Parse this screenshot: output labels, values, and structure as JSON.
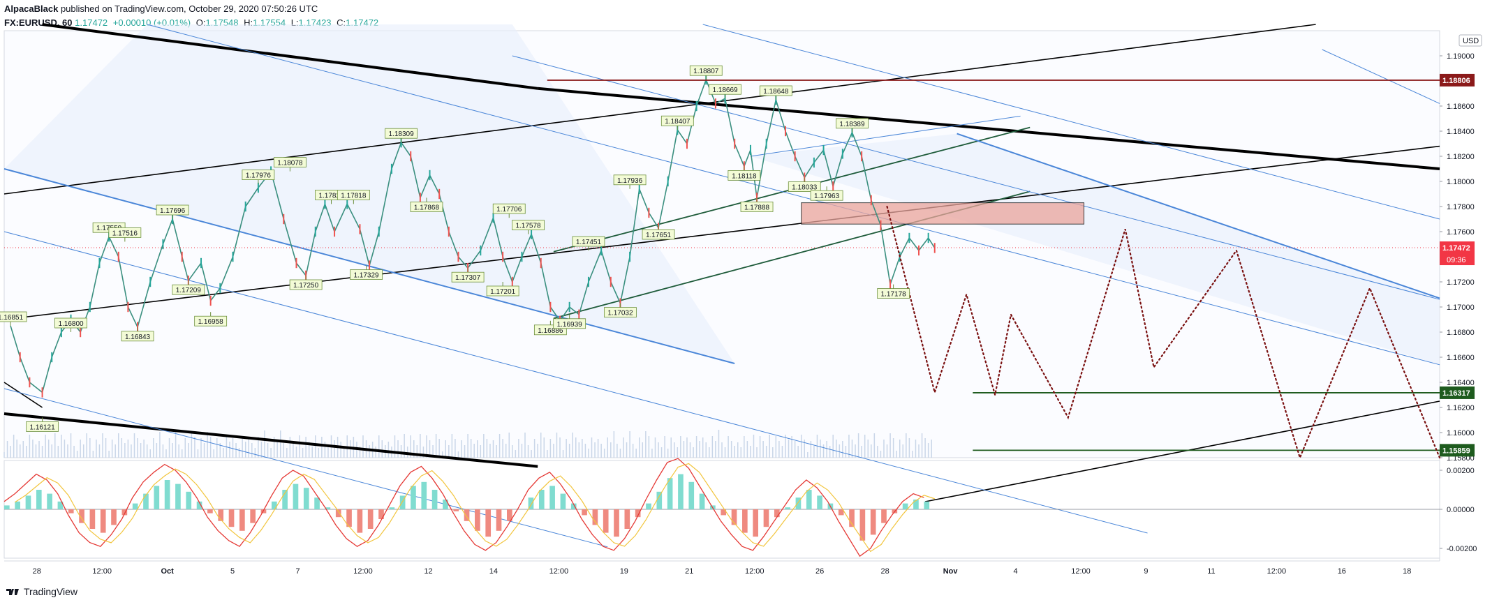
{
  "header": {
    "publisher": "AlpacaBlack",
    "published_text": "published on TradingView.com, October 29, 2020 07:50:26 UTC",
    "symbol": "FX:EURUSD, 60",
    "last": "1.17472",
    "change": "+0.00010 (+0.01%)",
    "o_label": "O:",
    "o_value": "1.17548",
    "h_label": "H:",
    "h_value": "1.17554",
    "l_label": "L:",
    "l_value": "1.17423",
    "c_label": "C:",
    "c_value": "1.17472"
  },
  "footer": {
    "brand": "TradingView"
  },
  "colors": {
    "up": "#26a69a",
    "down": "#ef5350",
    "channel": "#4a86d8",
    "resistance": "#8b1a1a",
    "support": "#1e5b1e",
    "zone": "#eaa59c",
    "projection": "#7a1010",
    "price_tag": "#f23645"
  },
  "chart_data": {
    "type": "line",
    "title": "",
    "currency_label": "USD",
    "ylim": [
      1.158,
      1.192
    ],
    "y_ticks": [
      "1.19000",
      "1.18800",
      "1.18600",
      "1.18400",
      "1.18200",
      "1.18000",
      "1.17800",
      "1.17600",
      "1.17400",
      "1.17200",
      "1.17000",
      "1.16800",
      "1.16600",
      "1.16400",
      "1.16200",
      "1.16000",
      "1.15800"
    ],
    "x_ticks": [
      "28",
      "12:00",
      "Oct",
      "5",
      "7",
      "12:00",
      "12",
      "14",
      "12:00",
      "19",
      "21",
      "12:00",
      "26",
      "28",
      "Nov",
      "4",
      "12:00",
      "9",
      "11",
      "12:00",
      "16",
      "18"
    ],
    "price_path": [
      {
        "x": 2,
        "y": 1.1685
      },
      {
        "x": 5,
        "y": 1.166
      },
      {
        "x": 8,
        "y": 1.164
      },
      {
        "x": 12,
        "y": 1.1632
      },
      {
        "x": 15,
        "y": 1.166
      },
      {
        "x": 18,
        "y": 1.168
      },
      {
        "x": 21,
        "y": 1.169
      },
      {
        "x": 24,
        "y": 1.168
      },
      {
        "x": 27,
        "y": 1.17
      },
      {
        "x": 30,
        "y": 1.1735
      },
      {
        "x": 33,
        "y": 1.1756
      },
      {
        "x": 36,
        "y": 1.174
      },
      {
        "x": 39,
        "y": 1.17
      },
      {
        "x": 42,
        "y": 1.1684
      },
      {
        "x": 46,
        "y": 1.172
      },
      {
        "x": 50,
        "y": 1.175
      },
      {
        "x": 53,
        "y": 1.177
      },
      {
        "x": 56,
        "y": 1.174
      },
      {
        "x": 58,
        "y": 1.1721
      },
      {
        "x": 62,
        "y": 1.1735
      },
      {
        "x": 65,
        "y": 1.1705
      },
      {
        "x": 68,
        "y": 1.1715
      },
      {
        "x": 72,
        "y": 1.174
      },
      {
        "x": 76,
        "y": 1.178
      },
      {
        "x": 80,
        "y": 1.1795
      },
      {
        "x": 84,
        "y": 1.1808
      },
      {
        "x": 88,
        "y": 1.177
      },
      {
        "x": 92,
        "y": 1.1735
      },
      {
        "x": 95,
        "y": 1.1725
      },
      {
        "x": 98,
        "y": 1.176
      },
      {
        "x": 101,
        "y": 1.1782
      },
      {
        "x": 104,
        "y": 1.176
      },
      {
        "x": 108,
        "y": 1.1782
      },
      {
        "x": 112,
        "y": 1.1762
      },
      {
        "x": 115,
        "y": 1.1733
      },
      {
        "x": 118,
        "y": 1.176
      },
      {
        "x": 122,
        "y": 1.181
      },
      {
        "x": 125,
        "y": 1.1831
      },
      {
        "x": 128,
        "y": 1.182
      },
      {
        "x": 131,
        "y": 1.1787
      },
      {
        "x": 134,
        "y": 1.1805
      },
      {
        "x": 137,
        "y": 1.179
      },
      {
        "x": 140,
        "y": 1.176
      },
      {
        "x": 143,
        "y": 1.174
      },
      {
        "x": 146,
        "y": 1.1731
      },
      {
        "x": 150,
        "y": 1.1745
      },
      {
        "x": 154,
        "y": 1.1771
      },
      {
        "x": 157,
        "y": 1.174
      },
      {
        "x": 160,
        "y": 1.172
      },
      {
        "x": 163,
        "y": 1.174
      },
      {
        "x": 166,
        "y": 1.1758
      },
      {
        "x": 169,
        "y": 1.1735
      },
      {
        "x": 172,
        "y": 1.17
      },
      {
        "x": 175,
        "y": 1.1689
      },
      {
        "x": 178,
        "y": 1.17
      },
      {
        "x": 181,
        "y": 1.1694
      },
      {
        "x": 184,
        "y": 1.172
      },
      {
        "x": 188,
        "y": 1.1745
      },
      {
        "x": 191,
        "y": 1.172
      },
      {
        "x": 194,
        "y": 1.1703
      },
      {
        "x": 197,
        "y": 1.174
      },
      {
        "x": 200,
        "y": 1.1794
      },
      {
        "x": 203,
        "y": 1.1775
      },
      {
        "x": 206,
        "y": 1.1763
      },
      {
        "x": 209,
        "y": 1.18
      },
      {
        "x": 212,
        "y": 1.1841
      },
      {
        "x": 215,
        "y": 1.183
      },
      {
        "x": 218,
        "y": 1.186
      },
      {
        "x": 221,
        "y": 1.1881
      },
      {
        "x": 224,
        "y": 1.1862
      },
      {
        "x": 227,
        "y": 1.1866
      },
      {
        "x": 230,
        "y": 1.183
      },
      {
        "x": 233,
        "y": 1.1812
      },
      {
        "x": 235,
        "y": 1.1825
      },
      {
        "x": 237,
        "y": 1.1787
      },
      {
        "x": 240,
        "y": 1.183
      },
      {
        "x": 243,
        "y": 1.1865
      },
      {
        "x": 246,
        "y": 1.184
      },
      {
        "x": 249,
        "y": 1.182
      },
      {
        "x": 252,
        "y": 1.1803
      },
      {
        "x": 255,
        "y": 1.1815
      },
      {
        "x": 258,
        "y": 1.1825
      },
      {
        "x": 261,
        "y": 1.1796
      },
      {
        "x": 264,
        "y": 1.1822
      },
      {
        "x": 267,
        "y": 1.1839
      },
      {
        "x": 270,
        "y": 1.182
      },
      {
        "x": 273,
        "y": 1.1785
      },
      {
        "x": 276,
        "y": 1.1765
      },
      {
        "x": 279,
        "y": 1.1718
      },
      {
        "x": 282,
        "y": 1.174
      },
      {
        "x": 285,
        "y": 1.1755
      },
      {
        "x": 288,
        "y": 1.1745
      },
      {
        "x": 291,
        "y": 1.1755
      },
      {
        "x": 293,
        "y": 1.1747
      }
    ],
    "price_labels": [
      {
        "x": 2,
        "y": 1.1685,
        "label": "1.16851",
        "pos": "above"
      },
      {
        "x": 12,
        "y": 1.1612,
        "label": "1.16121",
        "pos": "below"
      },
      {
        "x": 21,
        "y": 1.168,
        "label": "1.16800",
        "pos": "above"
      },
      {
        "x": 33,
        "y": 1.1756,
        "label": "1.17559",
        "pos": "above"
      },
      {
        "x": 38,
        "y": 1.1752,
        "label": "1.17516",
        "pos": "above"
      },
      {
        "x": 42,
        "y": 1.1684,
        "label": "1.16843",
        "pos": "below"
      },
      {
        "x": 53,
        "y": 1.177,
        "label": "1.17696",
        "pos": "above"
      },
      {
        "x": 58,
        "y": 1.1721,
        "label": "1.17209",
        "pos": "below"
      },
      {
        "x": 65,
        "y": 1.1696,
        "label": "1.16958",
        "pos": "below"
      },
      {
        "x": 80,
        "y": 1.1798,
        "label": "1.17976",
        "pos": "above"
      },
      {
        "x": 90,
        "y": 1.1808,
        "label": "1.18078",
        "pos": "above"
      },
      {
        "x": 95,
        "y": 1.1725,
        "label": "1.17250",
        "pos": "below"
      },
      {
        "x": 103,
        "y": 1.1782,
        "label": "1.17820",
        "pos": "above"
      },
      {
        "x": 110,
        "y": 1.1782,
        "label": "1.17818",
        "pos": "above"
      },
      {
        "x": 114,
        "y": 1.1733,
        "label": "1.17329",
        "pos": "below"
      },
      {
        "x": 125,
        "y": 1.1831,
        "label": "1.18309",
        "pos": "above"
      },
      {
        "x": 133,
        "y": 1.1787,
        "label": "1.17868",
        "pos": "below"
      },
      {
        "x": 146,
        "y": 1.1731,
        "label": "1.17307",
        "pos": "below"
      },
      {
        "x": 159,
        "y": 1.1771,
        "label": "1.17706",
        "pos": "above"
      },
      {
        "x": 157,
        "y": 1.172,
        "label": "1.17201",
        "pos": "below"
      },
      {
        "x": 165,
        "y": 1.1758,
        "label": "1.17578",
        "pos": "above"
      },
      {
        "x": 172,
        "y": 1.1689,
        "label": "1.16886",
        "pos": "below"
      },
      {
        "x": 178,
        "y": 1.1694,
        "label": "1.16939",
        "pos": "below"
      },
      {
        "x": 184,
        "y": 1.1745,
        "label": "1.17451",
        "pos": "above"
      },
      {
        "x": 194,
        "y": 1.1703,
        "label": "1.17032",
        "pos": "below"
      },
      {
        "x": 197,
        "y": 1.1794,
        "label": "1.17936",
        "pos": "above"
      },
      {
        "x": 206,
        "y": 1.1765,
        "label": "1.17651",
        "pos": "below"
      },
      {
        "x": 212,
        "y": 1.1841,
        "label": "1.18407",
        "pos": "above"
      },
      {
        "x": 221,
        "y": 1.1881,
        "label": "1.18807",
        "pos": "above"
      },
      {
        "x": 227,
        "y": 1.1866,
        "label": "1.18669",
        "pos": "above"
      },
      {
        "x": 233,
        "y": 1.1812,
        "label": "1.18118",
        "pos": "below"
      },
      {
        "x": 237,
        "y": 1.1787,
        "label": "1.17888",
        "pos": "below"
      },
      {
        "x": 243,
        "y": 1.1865,
        "label": "1.18648",
        "pos": "above"
      },
      {
        "x": 252,
        "y": 1.1803,
        "label": "1.18033",
        "pos": "below"
      },
      {
        "x": 259,
        "y": 1.1796,
        "label": "1.17963",
        "pos": "below"
      },
      {
        "x": 267,
        "y": 1.1839,
        "label": "1.18389",
        "pos": "above"
      },
      {
        "x": 280,
        "y": 1.1718,
        "label": "1.17178",
        "pos": "below"
      }
    ],
    "horizontal_levels": [
      {
        "value": 1.18806,
        "label": "1.18806",
        "color": "#8b1a1a",
        "x_start": 171
      },
      {
        "value": 1.16317,
        "label": "1.16317",
        "color": "#1e5b1e",
        "x_start": 305
      },
      {
        "value": 1.15859,
        "label": "1.15859",
        "color": "#1e5b1e",
        "x_start": 305
      }
    ],
    "current_price": {
      "value": 1.17472,
      "label": "1.17472",
      "countdown": "09:36"
    },
    "zone": {
      "x0": 251,
      "x1": 340,
      "y0": 1.1783,
      "y1": 1.1766
    },
    "trendlines": [
      {
        "x0": 12,
        "y0": 1.1925,
        "x1": 168,
        "y1": 1.1874,
        "kind": "thick"
      },
      {
        "x0": 168,
        "y0": 1.1874,
        "x1": 452,
        "y1": 1.181,
        "kind": "thick"
      },
      {
        "x0": 0,
        "y0": 1.1615,
        "x1": 168,
        "y1": 1.1573,
        "kind": "thick"
      },
      {
        "x0": 0,
        "y0": 1.179,
        "x1": 413,
        "y1": 1.1925,
        "kind": "medium"
      },
      {
        "x0": 0,
        "y0": 1.169,
        "x1": 452,
        "y1": 1.1828,
        "kind": "medium"
      },
      {
        "x0": 290,
        "y0": 1.1545,
        "x1": 452,
        "y1": 1.1625,
        "kind": "medium"
      },
      {
        "x0": 0,
        "y0": 1.164,
        "x1": 12,
        "y1": 1.162,
        "kind": "medium"
      },
      {
        "x0": 173,
        "y0": 1.1691,
        "x1": 323,
        "y1": 1.1792,
        "kind": "green"
      },
      {
        "x0": 173,
        "y0": 1.1744,
        "x1": 323,
        "y1": 1.1843,
        "kind": "green"
      },
      {
        "x0": 0,
        "y0": 1.181,
        "x1": 230,
        "y1": 1.1655,
        "kind": "blue"
      },
      {
        "x0": 45,
        "y0": 1.1925,
        "x1": 452,
        "y1": 1.1654,
        "kind": "blue_thin"
      },
      {
        "x0": 160,
        "y0": 1.19,
        "x1": 452,
        "y1": 1.1706,
        "kind": "blue_thin"
      },
      {
        "x0": 220,
        "y0": 1.1925,
        "x1": 452,
        "y1": 1.177,
        "kind": "blue_thin"
      },
      {
        "x0": 0,
        "y0": 1.176,
        "x1": 360,
        "y1": 1.152,
        "kind": "blue_thin"
      },
      {
        "x0": 0,
        "y0": 1.1635,
        "x1": 190,
        "y1": 1.1509,
        "kind": "blue_thin"
      },
      {
        "x0": 300,
        "y0": 1.1838,
        "x1": 452,
        "y1": 1.1707,
        "kind": "blue"
      },
      {
        "x0": 235,
        "y0": 1.182,
        "x1": 320,
        "y1": 1.1852,
        "kind": "blue_thin"
      },
      {
        "x0": 415,
        "y0": 1.1905,
        "x1": 452,
        "y1": 1.1862,
        "kind": "blue_thin"
      }
    ],
    "projection": [
      {
        "x": 278,
        "y": 1.178
      },
      {
        "x": 293,
        "y": 1.1632
      },
      {
        "x": 303,
        "y": 1.171
      },
      {
        "x": 312,
        "y": 1.163
      },
      {
        "x": 317,
        "y": 1.1694
      },
      {
        "x": 335,
        "y": 1.1612
      },
      {
        "x": 353,
        "y": 1.1762
      },
      {
        "x": 362,
        "y": 1.1652
      },
      {
        "x": 388,
        "y": 1.1745
      },
      {
        "x": 408,
        "y": 1.158
      },
      {
        "x": 430,
        "y": 1.1715
      },
      {
        "x": 452,
        "y": 1.158
      }
    ],
    "oscillator": {
      "ylim": [
        -0.0025,
        0.0025
      ],
      "y_ticks": [
        "0.00200",
        "0.00000",
        "-0.00200"
      ],
      "histogram": [
        0.0002,
        0.0004,
        0.0007,
        0.001,
        0.0008,
        0.0004,
        -0.0002,
        -0.0007,
        -0.001,
        -0.0012,
        -0.0008,
        -0.0003,
        0.0003,
        0.0008,
        0.0012,
        0.0015,
        0.0013,
        0.0009,
        0.0004,
        -0.0002,
        -0.0006,
        -0.0009,
        -0.0011,
        -0.0007,
        -0.0002,
        0.0004,
        0.001,
        0.0013,
        0.0011,
        0.0006,
        0.0001,
        -0.0004,
        -0.0009,
        -0.0012,
        -0.001,
        -0.0005,
        0.0001,
        0.0007,
        0.0012,
        0.0014,
        0.001,
        0.0005,
        -0.0001,
        -0.0006,
        -0.0011,
        -0.0014,
        -0.0011,
        -0.0006,
        0.0,
        0.0006,
        0.001,
        0.0012,
        0.0008,
        0.0003,
        -0.0003,
        -0.0008,
        -0.0012,
        -0.0014,
        -0.001,
        -0.0004,
        0.0003,
        0.0009,
        0.0016,
        0.0018,
        0.0014,
        0.0008,
        0.0002,
        -0.0003,
        -0.0008,
        -0.0012,
        -0.0014,
        -0.0009,
        -0.0004,
        0.0001,
        0.0006,
        0.001,
        0.0007,
        0.0003,
        -0.0003,
        -0.0009,
        -0.0016,
        -0.0013,
        -0.0007,
        -0.0002,
        0.0003,
        0.0005,
        0.0004
      ],
      "line_fast": [
        0.0004,
        0.0008,
        0.0013,
        0.0018,
        0.0015,
        0.0008,
        -0.0003,
        -0.0012,
        -0.0017,
        -0.0019,
        -0.0013,
        -0.0005,
        0.0006,
        0.0014,
        0.0019,
        0.0023,
        0.002,
        0.0014,
        0.0006,
        -0.0004,
        -0.0011,
        -0.0016,
        -0.0019,
        -0.0012,
        -0.0003,
        0.0007,
        0.0016,
        0.002,
        0.0017,
        0.0009,
        0.0001,
        -0.0008,
        -0.0015,
        -0.0019,
        -0.0016,
        -0.0008,
        0.0002,
        0.0012,
        0.0019,
        0.0022,
        0.0016,
        0.0008,
        -0.0002,
        -0.0011,
        -0.0018,
        -0.0021,
        -0.0017,
        -0.0009,
        0.0,
        0.001,
        0.0016,
        0.0019,
        0.0013,
        0.0005,
        -0.0005,
        -0.0013,
        -0.0019,
        -0.0021,
        -0.0015,
        -0.0006,
        0.0005,
        0.0015,
        0.0024,
        0.0026,
        0.0021,
        0.0012,
        0.0003,
        -0.0006,
        -0.0013,
        -0.0019,
        -0.0021,
        -0.0014,
        -0.0006,
        0.0002,
        0.001,
        0.0015,
        0.0011,
        0.0004,
        -0.0006,
        -0.0015,
        -0.0024,
        -0.002,
        -0.0011,
        -0.0003,
        0.0004,
        0.0008,
        0.0006
      ]
    }
  }
}
